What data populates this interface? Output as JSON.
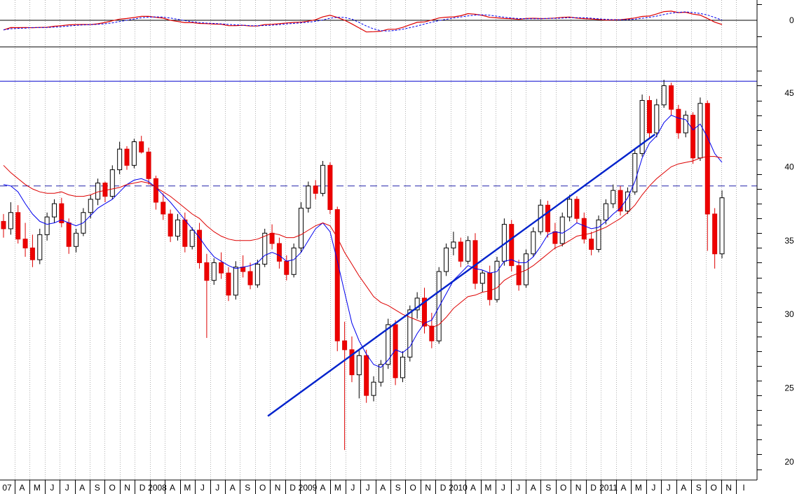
{
  "chart_data": {
    "type": "candlestick",
    "price_axis": {
      "ylim": [
        19,
        46.5
      ],
      "ticks": [
        20,
        25,
        30,
        35,
        40,
        45
      ]
    },
    "oscillator_axis": {
      "ticks": [
        0
      ]
    },
    "x_axis": {
      "labels": [
        "07",
        "A",
        "M",
        "J",
        "J",
        "A",
        "S",
        "O",
        "N",
        "D",
        "2008",
        "A",
        "M",
        "J",
        "J",
        "A",
        "S",
        "O",
        "N",
        "D",
        "2009",
        "A",
        "M",
        "J",
        "J",
        "A",
        "S",
        "O",
        "N",
        "D",
        "2010",
        "A",
        "M",
        "J",
        "J",
        "A",
        "S",
        "O",
        "N",
        "D",
        "2011",
        "A",
        "M",
        "J",
        "J",
        "A",
        "S",
        "O",
        "N",
        "I"
      ]
    },
    "reference_lines": {
      "resistance": 45.8,
      "dashed_level": 38.7
    },
    "trendline": {
      "start": {
        "label": "N",
        "value": 23.1
      },
      "end": {
        "label": "J",
        "value": 42.2
      }
    },
    "series": [
      {
        "style": "candles",
        "weeks": [
          [
            36.3,
            36.8,
            35.2,
            35.8
          ],
          [
            35.8,
            37.6,
            35.4,
            36.9
          ],
          [
            36.9,
            37.4,
            34.8,
            35.1
          ],
          [
            35.1,
            36.2,
            33.9,
            34.5
          ],
          [
            34.5,
            35.4,
            33.2,
            33.7
          ],
          [
            33.7,
            35.8,
            33.4,
            35.4
          ],
          [
            35.4,
            36.9,
            35.0,
            36.6
          ],
          [
            36.6,
            37.8,
            36.2,
            37.5
          ],
          [
            37.5,
            37.9,
            35.9,
            36.2
          ],
          [
            36.2,
            36.5,
            34.1,
            34.6
          ],
          [
            34.6,
            35.8,
            34.2,
            35.5
          ],
          [
            35.5,
            37.2,
            35.3,
            36.9
          ],
          [
            36.9,
            38.1,
            36.5,
            37.8
          ],
          [
            37.8,
            39.2,
            37.4,
            38.9
          ],
          [
            38.9,
            39.0,
            37.6,
            38.0
          ],
          [
            38.0,
            40.1,
            37.8,
            39.8
          ],
          [
            39.8,
            41.7,
            39.5,
            41.2
          ],
          [
            41.2,
            41.4,
            39.8,
            40.1
          ],
          [
            40.1,
            41.9,
            39.9,
            41.7
          ],
          [
            41.7,
            42.1,
            40.9,
            41.0
          ],
          [
            41.0,
            41.3,
            38.8,
            39.2
          ],
          [
            39.2,
            39.4,
            37.1,
            37.6
          ],
          [
            37.6,
            38.2,
            36.4,
            36.8
          ],
          [
            36.8,
            37.1,
            34.9,
            35.3
          ],
          [
            35.3,
            36.8,
            35.0,
            36.4
          ],
          [
            36.4,
            36.9,
            34.2,
            34.6
          ],
          [
            34.6,
            35.9,
            34.4,
            35.7
          ],
          [
            35.7,
            36.2,
            33.1,
            33.5
          ],
          [
            33.5,
            34.1,
            28.4,
            32.3
          ],
          [
            32.3,
            33.8,
            32.0,
            33.5
          ],
          [
            33.5,
            34.2,
            32.4,
            32.8
          ],
          [
            32.8,
            33.2,
            30.9,
            31.3
          ],
          [
            31.3,
            33.6,
            31.0,
            33.2
          ],
          [
            33.2,
            34.0,
            32.5,
            32.9
          ],
          [
            32.9,
            33.5,
            31.7,
            32.0
          ],
          [
            32.0,
            33.7,
            31.8,
            33.4
          ],
          [
            33.4,
            35.8,
            33.2,
            35.5
          ],
          [
            35.5,
            36.1,
            34.4,
            34.8
          ],
          [
            34.8,
            35.2,
            33.1,
            33.6
          ],
          [
            33.6,
            34.0,
            32.3,
            32.7
          ],
          [
            32.7,
            34.8,
            32.5,
            34.5
          ],
          [
            34.5,
            37.6,
            34.2,
            37.2
          ],
          [
            37.2,
            39.0,
            36.9,
            38.7
          ],
          [
            38.7,
            39.1,
            37.8,
            38.2
          ],
          [
            38.2,
            40.4,
            38.0,
            40.1
          ],
          [
            40.1,
            40.3,
            36.8,
            37.1
          ],
          [
            37.1,
            37.3,
            27.5,
            28.2
          ],
          [
            28.2,
            29.5,
            20.8,
            27.6
          ],
          [
            27.6,
            28.5,
            25.4,
            25.9
          ],
          [
            25.9,
            27.6,
            24.3,
            27.2
          ],
          [
            27.2,
            27.6,
            24.0,
            24.5
          ],
          [
            24.5,
            25.8,
            24.1,
            25.4
          ],
          [
            25.4,
            26.9,
            25.1,
            26.6
          ],
          [
            26.6,
            29.7,
            26.3,
            29.3
          ],
          [
            29.3,
            29.6,
            25.2,
            25.7
          ],
          [
            25.7,
            27.5,
            25.4,
            27.1
          ],
          [
            27.1,
            30.6,
            26.8,
            30.3
          ],
          [
            30.3,
            31.5,
            29.7,
            31.1
          ],
          [
            31.1,
            31.8,
            28.7,
            29.2
          ],
          [
            29.2,
            30.1,
            27.7,
            28.2
          ],
          [
            28.2,
            33.2,
            28.0,
            32.9
          ],
          [
            32.9,
            34.8,
            32.6,
            34.5
          ],
          [
            34.5,
            35.6,
            34.0,
            34.9
          ],
          [
            34.9,
            35.2,
            33.2,
            33.6
          ],
          [
            33.6,
            35.3,
            33.4,
            35.0
          ],
          [
            35.0,
            35.5,
            31.7,
            32.1
          ],
          [
            32.1,
            33.0,
            31.5,
            32.8
          ],
          [
            32.8,
            33.3,
            30.6,
            31.0
          ],
          [
            31.0,
            33.9,
            30.8,
            33.6
          ],
          [
            33.6,
            36.5,
            33.3,
            36.1
          ],
          [
            36.1,
            36.4,
            32.9,
            33.3
          ],
          [
            33.3,
            33.7,
            31.6,
            32.0
          ],
          [
            32.0,
            34.4,
            31.8,
            34.1
          ],
          [
            34.1,
            35.9,
            33.9,
            35.6
          ],
          [
            35.6,
            37.8,
            35.4,
            37.4
          ],
          [
            37.4,
            37.7,
            35.2,
            35.6
          ],
          [
            35.6,
            36.2,
            34.4,
            34.8
          ],
          [
            34.8,
            36.9,
            34.6,
            36.6
          ],
          [
            36.6,
            38.1,
            36.3,
            37.8
          ],
          [
            37.8,
            38.0,
            36.2,
            36.5
          ],
          [
            36.5,
            36.9,
            34.8,
            35.1
          ],
          [
            35.1,
            35.6,
            34.0,
            34.4
          ],
          [
            34.4,
            36.7,
            34.2,
            36.4
          ],
          [
            36.4,
            37.8,
            36.1,
            37.5
          ],
          [
            37.5,
            38.8,
            37.2,
            38.4
          ],
          [
            38.4,
            38.7,
            36.7,
            37.0
          ],
          [
            37.0,
            38.6,
            36.8,
            38.3
          ],
          [
            38.3,
            41.2,
            38.1,
            40.9
          ],
          [
            40.9,
            44.9,
            40.7,
            44.5
          ],
          [
            44.5,
            44.8,
            41.9,
            42.3
          ],
          [
            42.3,
            44.6,
            42.0,
            44.2
          ],
          [
            44.2,
            45.9,
            44.0,
            45.5
          ],
          [
            45.5,
            45.7,
            43.5,
            43.9
          ],
          [
            43.9,
            44.2,
            41.9,
            42.3
          ],
          [
            42.3,
            43.8,
            42.0,
            43.5
          ],
          [
            43.5,
            43.7,
            40.2,
            40.6
          ],
          [
            40.6,
            44.7,
            40.4,
            44.3
          ],
          [
            44.3,
            44.5,
            34.3,
            36.8
          ],
          [
            36.8,
            37.2,
            33.1,
            34.1
          ],
          [
            34.1,
            38.4,
            33.8,
            37.9
          ]
        ]
      },
      {
        "style": "line",
        "color": "#0000ee",
        "values": [
          38.8,
          38.7,
          38.3,
          37.5,
          36.8,
          36.3,
          36.1,
          36.2,
          36.4,
          36.2,
          36.0,
          36.2,
          36.7,
          37.2,
          37.5,
          37.8,
          38.3,
          38.8,
          39.1,
          39.2,
          39.0,
          38.6,
          38.1,
          37.6,
          37.0,
          36.4,
          35.8,
          35.2,
          34.5,
          33.9,
          33.6,
          33.3,
          33.1,
          33.2,
          33.3,
          33.5,
          34.0,
          34.2,
          34.0,
          33.6,
          33.7,
          34.2,
          35.0,
          35.8,
          36.2,
          35.6,
          33.6,
          31.5,
          29.4,
          28.2,
          27.3,
          26.6,
          26.4,
          26.9,
          27.6,
          27.4,
          27.8,
          28.7,
          29.4,
          29.6,
          30.5,
          31.4,
          32.3,
          32.8,
          33.3,
          33.1,
          33.0,
          32.8,
          32.9,
          33.6,
          33.7,
          33.5,
          33.5,
          33.9,
          34.6,
          35.4,
          35.6,
          35.5,
          35.8,
          36.2,
          36.0,
          35.8,
          35.9,
          36.3,
          36.8,
          37.2,
          37.9,
          39.0,
          40.6,
          41.6,
          42.1,
          43.0,
          43.5,
          43.3,
          43.2,
          42.5,
          42.9,
          42.0,
          40.9,
          40.3
        ]
      },
      {
        "style": "line",
        "color": "#dd0000",
        "values": [
          40.1,
          39.6,
          39.2,
          38.8,
          38.5,
          38.3,
          38.2,
          38.2,
          38.3,
          38.1,
          38.0,
          38.0,
          38.1,
          38.3,
          38.4,
          38.5,
          38.6,
          38.8,
          38.9,
          39.0,
          38.9,
          38.6,
          38.3,
          38.0,
          37.6,
          37.2,
          36.8,
          36.5,
          36.0,
          35.6,
          35.3,
          35.1,
          35.0,
          35.0,
          35.0,
          35.1,
          35.3,
          35.5,
          35.4,
          35.2,
          35.2,
          35.4,
          35.7,
          36.0,
          36.2,
          36.0,
          35.2,
          34.2,
          33.4,
          32.6,
          31.9,
          31.2,
          30.8,
          30.6,
          30.3,
          30.0,
          29.8,
          29.6,
          29.4,
          29.1,
          29.3,
          29.8,
          30.4,
          30.8,
          31.2,
          31.3,
          31.5,
          31.6,
          31.8,
          32.3,
          32.6,
          32.8,
          33.0,
          33.3,
          33.7,
          34.1,
          34.5,
          34.7,
          35.0,
          35.3,
          35.4,
          35.5,
          35.7,
          35.9,
          36.2,
          36.5,
          36.9,
          37.4,
          38.1,
          38.7,
          39.2,
          39.6,
          40.0,
          40.2,
          40.3,
          40.4,
          40.6,
          40.7,
          40.7,
          40.6
        ]
      }
    ]
  }
}
